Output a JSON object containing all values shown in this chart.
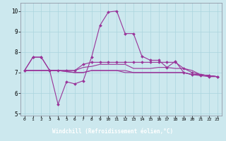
{
  "xlabel": "Windchill (Refroidissement éolien,°C)",
  "bg_color": "#cce8ee",
  "grid_color": "#aad4dd",
  "line_color": "#993399",
  "xlabel_bg": "#7755aa",
  "xlabel_fg": "#ffffff",
  "x": [
    0,
    1,
    2,
    3,
    4,
    5,
    6,
    7,
    8,
    9,
    10,
    11,
    12,
    13,
    14,
    15,
    16,
    17,
    18,
    19,
    20,
    21,
    22,
    23
  ],
  "line1_y": [
    7.1,
    7.75,
    7.75,
    7.1,
    5.45,
    6.55,
    6.45,
    6.6,
    7.75,
    9.3,
    9.95,
    10.0,
    8.9,
    8.9,
    7.8,
    7.6,
    7.6,
    7.25,
    7.55,
    7.0,
    6.9,
    6.85,
    6.8,
    6.8
  ],
  "line2_y": [
    7.1,
    7.75,
    7.75,
    7.1,
    7.1,
    7.1,
    7.1,
    7.4,
    7.5,
    7.5,
    7.5,
    7.5,
    7.5,
    7.5,
    7.5,
    7.5,
    7.5,
    7.5,
    7.5,
    7.2,
    7.0,
    6.9,
    6.85,
    6.8
  ],
  "line3_y": [
    7.1,
    7.1,
    7.1,
    7.1,
    7.1,
    7.1,
    7.1,
    7.25,
    7.3,
    7.4,
    7.4,
    7.4,
    7.4,
    7.2,
    7.2,
    7.2,
    7.25,
    7.25,
    7.2,
    7.2,
    7.1,
    6.9,
    6.85,
    6.8
  ],
  "line4_y": [
    7.1,
    7.1,
    7.1,
    7.1,
    7.1,
    7.05,
    7.0,
    7.0,
    7.1,
    7.1,
    7.1,
    7.1,
    7.1,
    7.0,
    7.0,
    7.0,
    7.0,
    7.0,
    7.0,
    7.0,
    6.9,
    6.9,
    6.85,
    6.8
  ],
  "line5_y": [
    7.1,
    7.1,
    7.1,
    7.1,
    7.1,
    7.05,
    7.0,
    7.0,
    7.1,
    7.1,
    7.1,
    7.1,
    7.0,
    7.0,
    7.0,
    7.0,
    7.0,
    7.0,
    7.0,
    7.0,
    6.9,
    6.9,
    6.85,
    6.8
  ],
  "ylim": [
    4.9,
    10.4
  ],
  "yticks": [
    5,
    6,
    7,
    8,
    9,
    10
  ],
  "xticks": [
    0,
    1,
    2,
    3,
    4,
    5,
    6,
    7,
    8,
    9,
    10,
    11,
    12,
    13,
    14,
    15,
    16,
    17,
    18,
    19,
    20,
    21,
    22,
    23
  ],
  "linewidth": 0.8,
  "markersize": 2.0
}
